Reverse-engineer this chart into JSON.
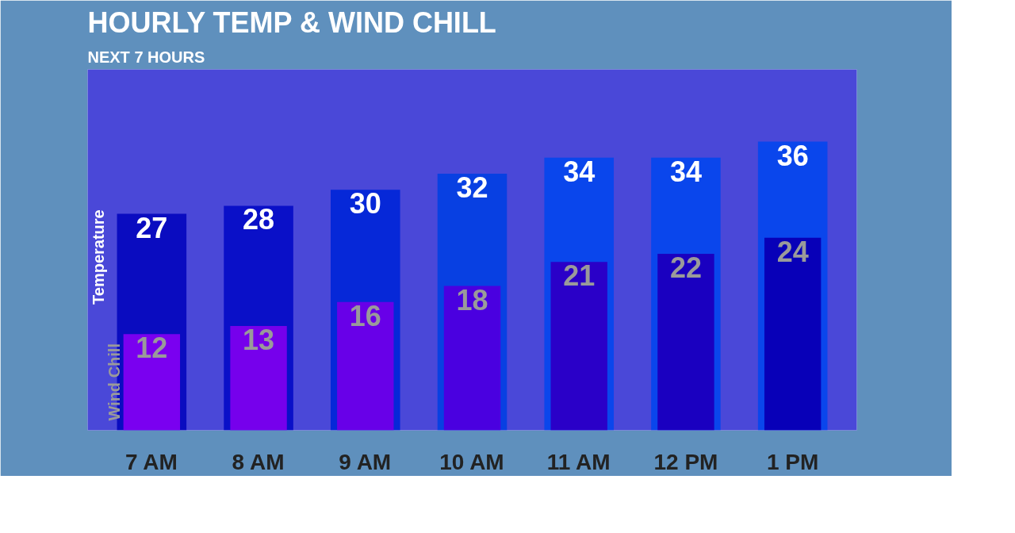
{
  "chart_data": {
    "type": "bar",
    "title": "HOURLY TEMP & WIND CHILL",
    "subtitle": "NEXT 7 HOURS",
    "categories": [
      "7 AM",
      "8 AM",
      "9 AM",
      "10 AM",
      "11 AM",
      "12 PM",
      "1 PM"
    ],
    "series": [
      {
        "name": "Temperature",
        "values": [
          27,
          28,
          30,
          32,
          34,
          34,
          36
        ],
        "colors": [
          "#0a0cc0",
          "#0a10c8",
          "#0628d8",
          "#0840e2",
          "#0a46ec",
          "#0a46ec",
          "#0a46ec"
        ]
      },
      {
        "name": "Wind Chill",
        "values": [
          12,
          13,
          16,
          18,
          21,
          22,
          24
        ],
        "colors": [
          "#7a00f0",
          "#7600ec",
          "#6800e8",
          "#4a00e0",
          "#2a00c8",
          "#1a00c0",
          "#0800b8"
        ]
      }
    ],
    "data_labels": true,
    "grid": false
  }
}
